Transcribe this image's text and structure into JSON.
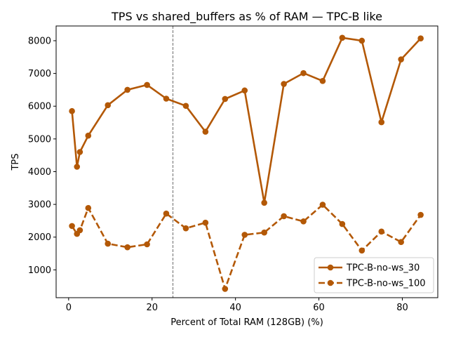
{
  "chart_data": {
    "type": "line",
    "title": "TPS vs shared_buffers as % of RAM — TPC-B like",
    "xlabel": "Percent of Total RAM (128GB) (%)",
    "ylabel": "TPS",
    "xlim": [
      -3,
      88.5
    ],
    "ylim": [
      150,
      8450
    ],
    "xticks": [
      0,
      20,
      40,
      60,
      80
    ],
    "yticks": [
      1000,
      2000,
      3000,
      4000,
      5000,
      6000,
      7000,
      8000
    ],
    "grid": false,
    "legend_position": "lower-right",
    "vline": {
      "x": 25,
      "color": "#808080",
      "style": "dashed"
    },
    "series": [
      {
        "name": "TPC-B-no-ws_30",
        "color": "#b35806",
        "linestyle": "solid",
        "marker": "circle",
        "x": [
          0.8,
          2.0,
          2.7,
          4.7,
          9.4,
          14.1,
          18.8,
          23.4,
          28.1,
          32.8,
          37.5,
          42.2,
          46.9,
          51.6,
          56.3,
          60.9,
          65.6,
          70.3,
          75.0,
          79.7,
          84.4
        ],
        "y": [
          5850,
          4150,
          4600,
          5100,
          6030,
          6500,
          6650,
          6230,
          6010,
          5220,
          6220,
          6480,
          3050,
          6680,
          7010,
          6770,
          8090,
          8000,
          5510,
          7430,
          8070
        ]
      },
      {
        "name": "TPC-B-no-ws_100",
        "color": "#b35806",
        "linestyle": "dashed",
        "marker": "circle",
        "x": [
          0.8,
          2.0,
          2.7,
          4.7,
          9.4,
          14.1,
          18.8,
          23.4,
          28.1,
          32.8,
          37.5,
          42.2,
          46.9,
          51.6,
          56.3,
          60.9,
          65.6,
          70.3,
          75.0,
          79.7,
          84.4
        ],
        "y": [
          2340,
          2100,
          2210,
          2890,
          1800,
          1690,
          1780,
          2720,
          2270,
          2440,
          420,
          2070,
          2140,
          2640,
          2480,
          2990,
          2400,
          1590,
          2170,
          1850,
          2680
        ]
      }
    ]
  }
}
